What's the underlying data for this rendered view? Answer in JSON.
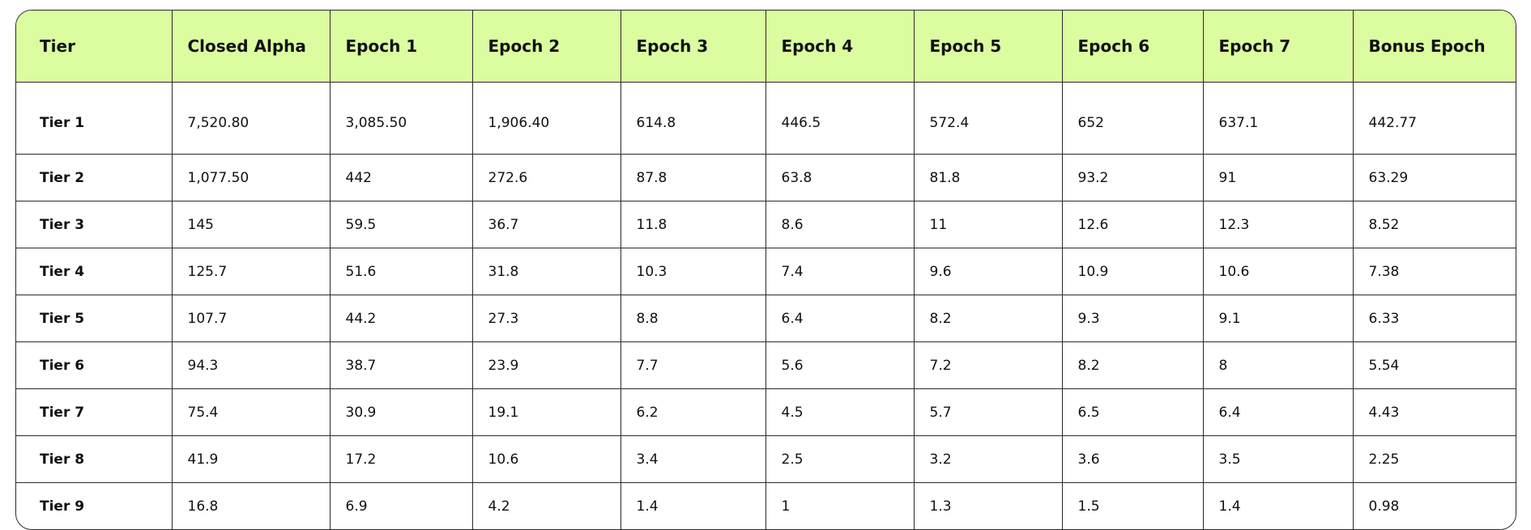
{
  "table": {
    "header": [
      "Tier",
      "Closed Alpha",
      "Epoch 1",
      "Epoch 2",
      "Epoch 3",
      "Epoch 4",
      "Epoch 5",
      "Epoch 6",
      "Epoch 7",
      "Bonus Epoch"
    ],
    "rows": [
      [
        "Tier 1",
        "7,520.80",
        "3,085.50",
        "1,906.40",
        "614.8",
        "446.5",
        "572.4",
        "652",
        "637.1",
        "442.77"
      ],
      [
        "Tier 2",
        "1,077.50",
        "442",
        "272.6",
        "87.8",
        "63.8",
        "81.8",
        "93.2",
        "91",
        "63.29"
      ],
      [
        "Tier 3",
        "145",
        "59.5",
        "36.7",
        "11.8",
        "8.6",
        "11",
        "12.6",
        "12.3",
        "8.52"
      ],
      [
        "Tier 4",
        "125.7",
        "51.6",
        "31.8",
        "10.3",
        "7.4",
        "9.6",
        "10.9",
        "10.6",
        "7.38"
      ],
      [
        "Tier 5",
        "107.7",
        "44.2",
        "27.3",
        "8.8",
        "6.4",
        "8.2",
        "9.3",
        "9.1",
        "6.33"
      ],
      [
        "Tier 6",
        "94.3",
        "38.7",
        "23.9",
        "7.7",
        "5.6",
        "7.2",
        "8.2",
        "8",
        "5.54"
      ],
      [
        "Tier 7",
        "75.4",
        "30.9",
        "19.1",
        "6.2",
        "4.5",
        "5.7",
        "6.5",
        "6.4",
        "4.43"
      ],
      [
        "Tier 8",
        "41.9",
        "17.2",
        "10.6",
        "3.4",
        "2.5",
        "3.2",
        "3.6",
        "3.5",
        "2.25"
      ],
      [
        "Tier 9",
        "16.8",
        "6.9",
        "4.2",
        "1.4",
        "1",
        "1.3",
        "1.5",
        "1.4",
        "0.98"
      ]
    ]
  }
}
